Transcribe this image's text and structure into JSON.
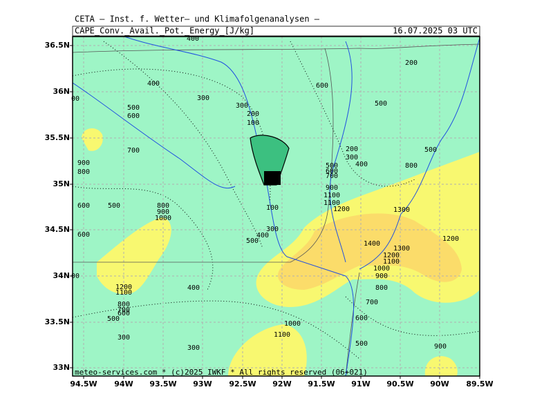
{
  "header": {
    "title": "CETA – Inst. f. Wetter– und Klimafolgenanalysen –",
    "field": "CAPE_Conv._Avail._Pot._Energy_[J/kg]",
    "valid_time": "16.07.2025 03 UTC"
  },
  "map": {
    "lat_labels": [
      "36.5N",
      "36N",
      "35.5N",
      "35N",
      "34.5N",
      "34N",
      "33.5N",
      "33N"
    ],
    "lon_labels": [
      "94.5W",
      "94W",
      "93.5W",
      "93W",
      "92.5W",
      "92W",
      "91.5W",
      "91W",
      "90.5W",
      "90W",
      "89.5W"
    ],
    "contour_labels": [
      "400",
      "400",
      "300",
      "500",
      "600",
      "300",
      "200",
      "100",
      "600",
      "200",
      "500",
      "700",
      "900",
      "800",
      "200",
      "300",
      "400",
      "500",
      "600",
      "700",
      "500",
      "800",
      "900",
      "1100",
      "1100",
      "1200",
      "1300",
      "600",
      "500",
      "800",
      "900",
      "1000",
      "100",
      "300",
      "400",
      "500",
      "600",
      "1200",
      "1400",
      "1300",
      "1200",
      "1100",
      "1000",
      "900",
      "800",
      "400",
      "1200",
      "1100",
      "800",
      "700",
      "600",
      "500",
      "700",
      "600",
      "1000",
      "1100",
      "300",
      "500",
      "300",
      "900",
      "00",
      "00"
    ]
  },
  "footer": "meteo-services.com * (c)2025 IWKF * All rights reserved (06+021)"
}
